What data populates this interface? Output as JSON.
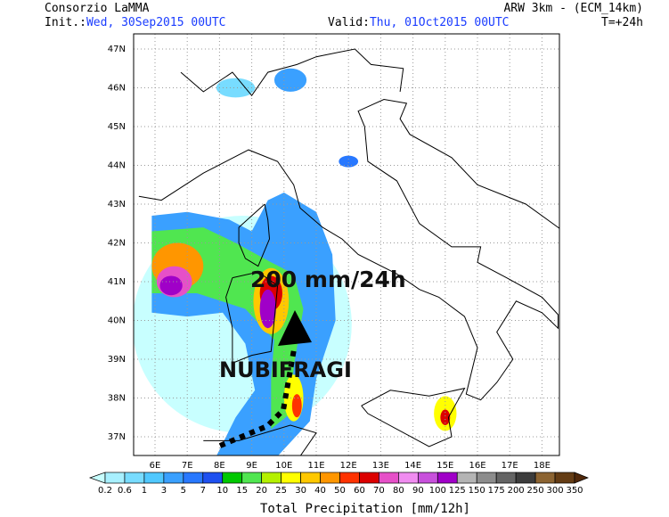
{
  "header": {
    "title": "Consorzio LaMMA",
    "init_label": "Init.:",
    "init_value": "Wed, 30Sep2015 00UTC",
    "model": "ARW 3km - (ECM_14km)",
    "valid_label": "Valid:",
    "valid_value": "Thu, 01Oct2015 00UTC",
    "lead_time": "T=+24h"
  },
  "map": {
    "lat_labels": [
      "47N",
      "46N",
      "45N",
      "44N",
      "43N",
      "42N",
      "41N",
      "40N",
      "39N",
      "38N",
      "37N"
    ],
    "lon_labels": [
      "6E",
      "7E",
      "8E",
      "9E",
      "10E",
      "11E",
      "12E",
      "13E",
      "14E",
      "15E",
      "16E",
      "17E",
      "18E"
    ],
    "annotations": [
      "200 mm/24h",
      "NUBIFRAGI"
    ]
  },
  "colorbar": {
    "labels": [
      "0.2",
      "0.6",
      "1",
      "3",
      "5",
      "7",
      "10",
      "15",
      "20",
      "25",
      "30",
      "40",
      "50",
      "60",
      "70",
      "80",
      "90",
      "100",
      "125",
      "150",
      "175",
      "200",
      "250",
      "300",
      "350"
    ],
    "under_color": "#c8ffff",
    "colors": [
      "#a8f0ff",
      "#78dcff",
      "#50c8ff",
      "#3aa0ff",
      "#2878ff",
      "#1e50f0",
      "#00c800",
      "#50e650",
      "#b4f000",
      "#ffff00",
      "#ffc800",
      "#ff9600",
      "#ff3200",
      "#dc0000",
      "#e650c8",
      "#f08cf0",
      "#c850dc",
      "#a000c8",
      "#b4b4b4",
      "#8c8c8c",
      "#646464",
      "#3c3c3c",
      "#8c6432",
      "#643c14"
    ],
    "over_color": "#50280a",
    "title": "Total Precipitation [mm/12h]"
  }
}
